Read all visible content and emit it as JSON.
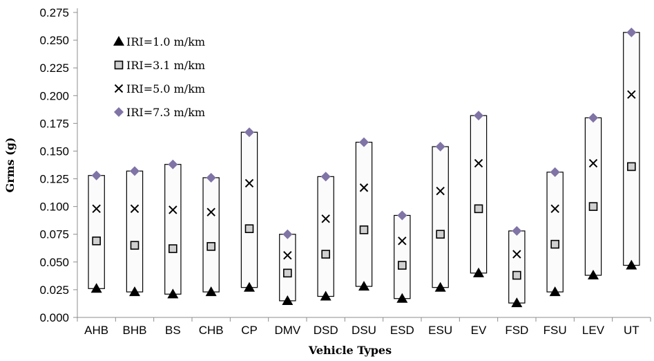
{
  "chart_data": {
    "type": "scatter",
    "title": "",
    "xlabel": "Vehicle Types",
    "ylabel": "Grms (g)",
    "ylim": [
      0,
      0.275
    ],
    "yticks": [
      "0.000",
      "0.025",
      "0.050",
      "0.075",
      "0.100",
      "0.125",
      "0.150",
      "0.175",
      "0.200",
      "0.225",
      "0.250",
      "0.275"
    ],
    "grid": false,
    "legend_position": "top-left",
    "categories": [
      "AHB",
      "BHB",
      "BS",
      "CHB",
      "CP",
      "DMV",
      "DSD",
      "DSU",
      "ESD",
      "ESU",
      "EV",
      "FSD",
      "FSU",
      "LEV",
      "UT"
    ],
    "range_boxes": "min-to-max",
    "series": [
      {
        "name": "IRI=1.0 m/km",
        "marker": "triangle",
        "color": "#000000",
        "values": [
          0.026,
          0.023,
          0.021,
          0.023,
          0.027,
          0.015,
          0.019,
          0.028,
          0.017,
          0.027,
          0.04,
          0.013,
          0.023,
          0.038,
          0.047
        ]
      },
      {
        "name": "IRI=3.1 m/km",
        "marker": "square",
        "color": "#d0d0d0",
        "values": [
          0.069,
          0.065,
          0.062,
          0.064,
          0.08,
          0.04,
          0.057,
          0.079,
          0.047,
          0.075,
          0.098,
          0.038,
          0.066,
          0.1,
          0.136
        ]
      },
      {
        "name": "IRI=5.0 m/km",
        "marker": "x",
        "color": "#000000",
        "values": [
          0.098,
          0.098,
          0.097,
          0.095,
          0.121,
          0.056,
          0.089,
          0.117,
          0.069,
          0.114,
          0.139,
          0.057,
          0.098,
          0.139,
          0.201
        ]
      },
      {
        "name": "IRI=7.3 m/km",
        "marker": "diamond",
        "color": "#8073a6",
        "values": [
          0.128,
          0.132,
          0.138,
          0.126,
          0.167,
          0.075,
          0.127,
          0.158,
          0.092,
          0.154,
          0.182,
          0.078,
          0.131,
          0.18,
          0.257
        ]
      }
    ]
  }
}
